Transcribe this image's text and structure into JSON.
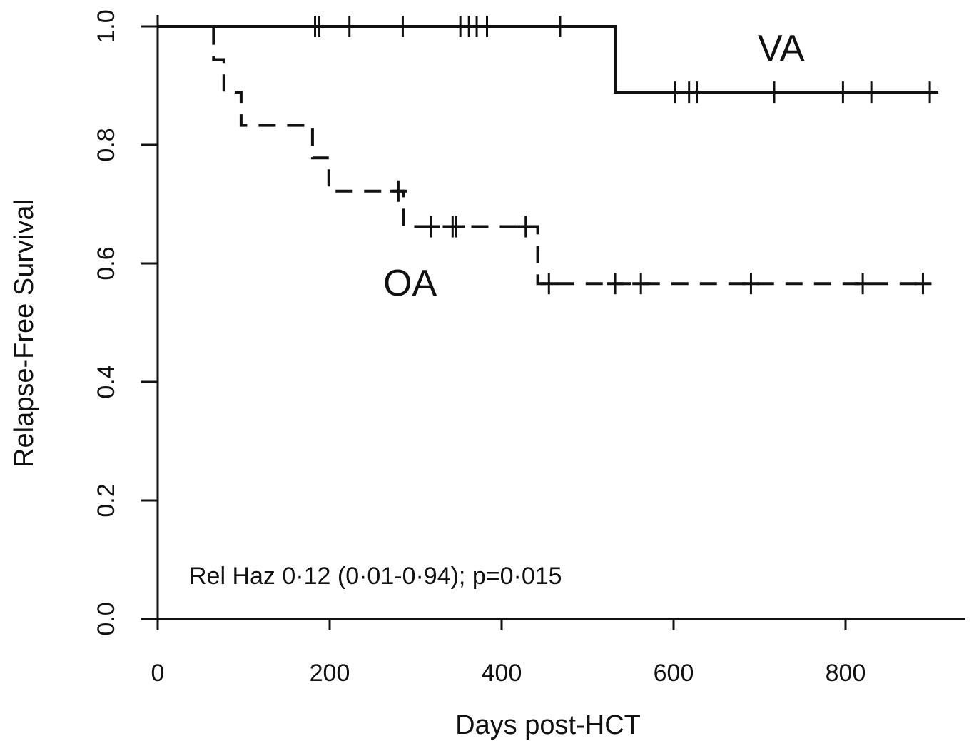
{
  "chart_data": {
    "type": "line",
    "subtype": "kaplan-meier-step",
    "title": "",
    "xlabel": "Days post-HCT",
    "ylabel": "Relapse-Free Survival",
    "xlim": [
      0,
      940
    ],
    "ylim": [
      0,
      1
    ],
    "x_ticks": [
      "0",
      "200",
      "400",
      "600",
      "800"
    ],
    "x_tick_values": [
      0,
      200,
      400,
      600,
      800
    ],
    "y_ticks": [
      "0.0",
      "0.2",
      "0.4",
      "0.6",
      "0.8",
      "1.0"
    ],
    "y_tick_values": [
      0,
      0.2,
      0.4,
      0.6,
      0.8,
      1.0
    ],
    "grid": false,
    "legend": "none",
    "annotation": "Rel Haz 0·12 (0·01-0·94); p=0·015",
    "series": [
      {
        "name": "VA",
        "line_style": "solid",
        "color": "#111111",
        "steps": [
          [
            0,
            1.0
          ],
          [
            532,
            0.889
          ],
          [
            908,
            0.889
          ]
        ],
        "censor_x": [
          183,
          188,
          223,
          285,
          352,
          362,
          371,
          383,
          468,
          602,
          618,
          627,
          717,
          797,
          830,
          898
        ]
      },
      {
        "name": "OA",
        "line_style": "dashed",
        "color": "#111111",
        "steps": [
          [
            0,
            1.0
          ],
          [
            65,
            0.944
          ],
          [
            77,
            0.889
          ],
          [
            97,
            0.833
          ],
          [
            180,
            0.778
          ],
          [
            199,
            0.722
          ],
          [
            286,
            0.662
          ],
          [
            442,
            0.566
          ],
          [
            893,
            0.566
          ]
        ],
        "censor_x": [
          280,
          318,
          343,
          347,
          428,
          455,
          532,
          562,
          690,
          820,
          890
        ]
      }
    ]
  }
}
